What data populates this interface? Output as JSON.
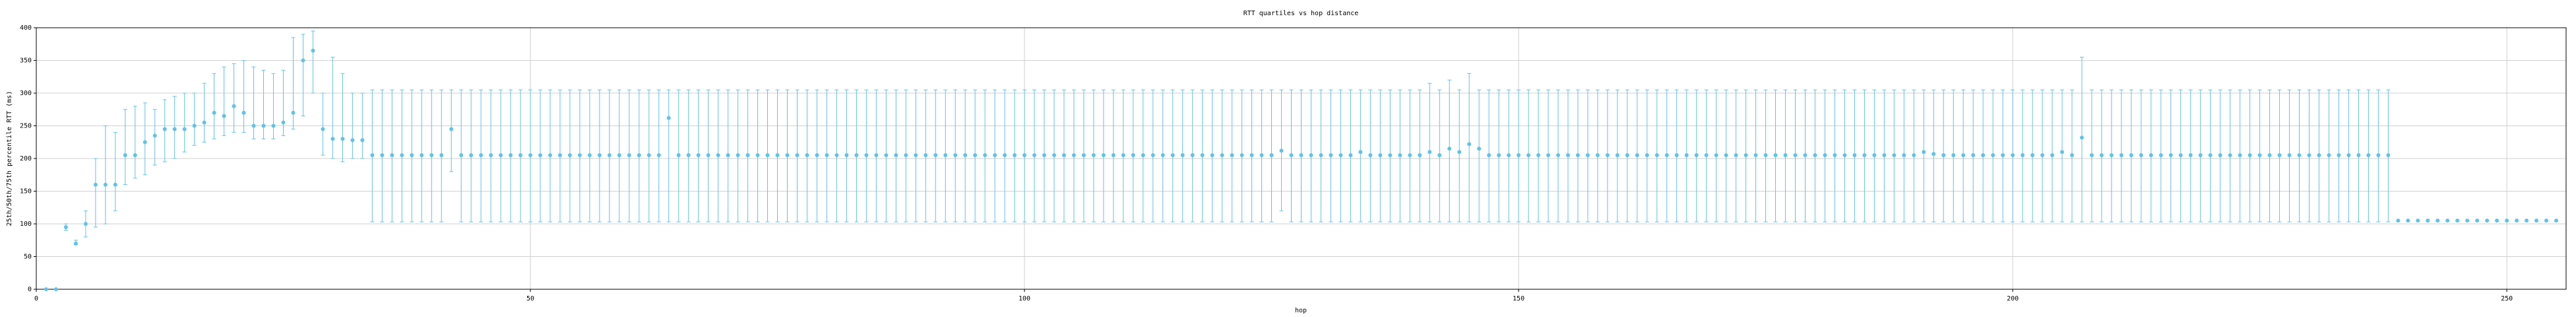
{
  "chart_data": {
    "type": "errorbar",
    "title": "RTT quartiles vs hop distance",
    "x_label": "hop",
    "y_label": "25th/50th/75th percentile RTT (ms)",
    "color": "#5fc3e8",
    "grid": true,
    "xlim": [
      0,
      256
    ],
    "xticks": [
      0,
      50,
      100,
      150,
      200,
      250
    ],
    "ylim": [
      0,
      400
    ],
    "yticks": [
      0,
      50,
      100,
      150,
      200,
      250,
      300,
      350,
      400
    ],
    "x": [
      1,
      2,
      3,
      4,
      5,
      6,
      7,
      8,
      9,
      10,
      11,
      12,
      13,
      14,
      15,
      16,
      17,
      18,
      19,
      20,
      21,
      22,
      23,
      24,
      25,
      26,
      27,
      28,
      29,
      30,
      31,
      32,
      33,
      34,
      35,
      36,
      37,
      38,
      39,
      40,
      41,
      42,
      43,
      44,
      45,
      46,
      47,
      48,
      49,
      50,
      51,
      52,
      53,
      54,
      55,
      56,
      57,
      58,
      59,
      60,
      61,
      62,
      63,
      64,
      65,
      66,
      67,
      68,
      69,
      70,
      71,
      72,
      73,
      74,
      75,
      76,
      77,
      78,
      79,
      80,
      81,
      82,
      83,
      84,
      85,
      86,
      87,
      88,
      89,
      90,
      91,
      92,
      93,
      94,
      95,
      96,
      97,
      98,
      99,
      100,
      101,
      102,
      103,
      104,
      105,
      106,
      107,
      108,
      109,
      110,
      111,
      112,
      113,
      114,
      115,
      116,
      117,
      118,
      119,
      120,
      121,
      122,
      123,
      124,
      125,
      126,
      127,
      128,
      129,
      130,
      131,
      132,
      133,
      134,
      135,
      136,
      137,
      138,
      139,
      140,
      141,
      142,
      143,
      144,
      145,
      146,
      147,
      148,
      149,
      150,
      151,
      152,
      153,
      154,
      155,
      156,
      157,
      158,
      159,
      160,
      161,
      162,
      163,
      164,
      165,
      166,
      167,
      168,
      169,
      170,
      171,
      172,
      173,
      174,
      175,
      176,
      177,
      178,
      179,
      180,
      181,
      182,
      183,
      184,
      185,
      186,
      187,
      188,
      189,
      190,
      191,
      192,
      193,
      194,
      195,
      196,
      197,
      198,
      199,
      200,
      201,
      202,
      203,
      204,
      205,
      206,
      207,
      208,
      209,
      210,
      211,
      212,
      213,
      214,
      215,
      216,
      217,
      218,
      219,
      220,
      221,
      222,
      223,
      224,
      225,
      226,
      227,
      228,
      229,
      230,
      231,
      232,
      233,
      234,
      235,
      236,
      237,
      238,
      239,
      240,
      241,
      242,
      243,
      244,
      245,
      246,
      247,
      248,
      249,
      250,
      251,
      252,
      253,
      254,
      255
    ],
    "values": [
      0,
      0,
      95,
      70,
      100,
      160,
      160,
      160,
      205,
      205,
      225,
      235,
      245,
      245,
      245,
      250,
      255,
      270,
      265,
      280,
      270,
      250,
      250,
      250,
      255,
      270,
      350,
      365,
      245,
      230,
      230,
      228,
      228,
      205,
      205,
      205,
      205,
      205,
      205,
      205,
      205,
      245,
      205,
      205,
      205,
      205,
      205,
      205,
      205,
      205,
      205,
      205,
      205,
      205,
      205,
      205,
      205,
      205,
      205,
      205,
      205,
      205,
      205,
      262,
      205,
      205,
      205,
      205,
      205,
      205,
      205,
      205,
      205,
      205,
      205,
      205,
      205,
      205,
      205,
      205,
      205,
      205,
      205,
      205,
      205,
      205,
      205,
      205,
      205,
      205,
      205,
      205,
      205,
      205,
      205,
      205,
      205,
      205,
      205,
      205,
      205,
      205,
      205,
      205,
      205,
      205,
      205,
      205,
      205,
      205,
      205,
      205,
      205,
      205,
      205,
      205,
      205,
      205,
      205,
      205,
      205,
      205,
      205,
      205,
      205,
      212,
      205,
      205,
      205,
      205,
      205,
      205,
      205,
      210,
      205,
      205,
      205,
      205,
      205,
      205,
      210,
      205,
      215,
      210,
      222,
      215,
      205,
      205,
      205,
      205,
      205,
      205,
      205,
      205,
      205,
      205,
      205,
      205,
      205,
      205,
      205,
      205,
      205,
      205,
      205,
      205,
      205,
      205,
      205,
      205,
      205,
      205,
      205,
      205,
      205,
      205,
      205,
      205,
      205,
      205,
      205,
      205,
      205,
      205,
      205,
      205,
      205,
      205,
      205,
      205,
      210,
      207,
      205,
      205,
      205,
      205,
      205,
      205,
      205,
      205,
      205,
      205,
      205,
      205,
      210,
      205,
      232,
      205,
      205,
      205,
      205,
      205,
      205,
      205,
      205,
      205,
      205,
      205,
      205,
      205,
      205,
      205,
      205,
      205,
      205,
      205,
      205,
      205,
      205,
      205,
      205,
      205,
      205,
      205,
      205,
      205,
      205,
      205,
      105,
      105,
      105,
      105,
      105,
      105,
      105,
      105,
      105,
      105,
      105,
      105,
      105,
      105,
      105,
      105,
      105
    ],
    "lower": [
      0,
      0,
      90,
      68,
      80,
      95,
      100,
      120,
      160,
      170,
      175,
      190,
      195,
      200,
      210,
      220,
      225,
      230,
      235,
      240,
      240,
      230,
      230,
      230,
      235,
      245,
      265,
      300,
      205,
      200,
      195,
      200,
      200,
      103,
      103,
      103,
      103,
      103,
      103,
      103,
      103,
      180,
      103,
      103,
      103,
      103,
      103,
      103,
      103,
      103,
      103,
      103,
      103,
      103,
      103,
      103,
      103,
      103,
      103,
      103,
      103,
      103,
      103,
      103,
      103,
      103,
      103,
      103,
      103,
      103,
      103,
      103,
      103,
      103,
      103,
      103,
      103,
      103,
      103,
      103,
      103,
      103,
      103,
      103,
      103,
      103,
      103,
      103,
      103,
      103,
      103,
      103,
      103,
      103,
      103,
      103,
      103,
      103,
      103,
      103,
      103,
      103,
      103,
      103,
      103,
      103,
      103,
      103,
      103,
      103,
      103,
      103,
      103,
      103,
      103,
      103,
      103,
      103,
      103,
      103,
      103,
      103,
      103,
      103,
      103,
      120,
      103,
      103,
      103,
      103,
      103,
      103,
      103,
      103,
      103,
      103,
      103,
      103,
      103,
      103,
      103,
      103,
      103,
      103,
      103,
      103,
      103,
      103,
      103,
      103,
      103,
      103,
      103,
      103,
      103,
      103,
      103,
      103,
      103,
      103,
      103,
      103,
      103,
      103,
      103,
      103,
      103,
      103,
      103,
      103,
      103,
      103,
      103,
      103,
      103,
      103,
      103,
      103,
      103,
      103,
      103,
      103,
      103,
      103,
      103,
      103,
      103,
      103,
      103,
      103,
      103,
      103,
      103,
      103,
      103,
      103,
      103,
      103,
      103,
      103,
      103,
      103,
      103,
      103,
      103,
      103,
      103,
      103,
      103,
      103,
      103,
      103,
      103,
      103,
      103,
      103,
      103,
      103,
      103,
      103,
      103,
      103,
      103,
      103,
      103,
      103,
      103,
      103,
      103,
      103,
      103,
      103,
      103,
      103,
      103,
      103,
      103,
      103,
      105,
      105,
      105,
      105,
      105,
      105,
      105,
      105,
      105,
      105,
      105,
      105,
      105,
      105,
      105,
      105,
      105
    ],
    "upper": [
      0,
      0,
      100,
      75,
      120,
      200,
      250,
      240,
      275,
      280,
      285,
      275,
      290,
      295,
      300,
      300,
      315,
      330,
      340,
      345,
      350,
      340,
      335,
      330,
      335,
      385,
      390,
      395,
      300,
      355,
      330,
      300,
      300,
      305,
      305,
      305,
      305,
      305,
      305,
      305,
      305,
      305,
      305,
      305,
      305,
      305,
      305,
      305,
      305,
      305,
      305,
      305,
      305,
      305,
      305,
      305,
      305,
      305,
      305,
      305,
      305,
      305,
      305,
      305,
      305,
      305,
      305,
      305,
      305,
      305,
      305,
      305,
      305,
      305,
      305,
      305,
      305,
      305,
      305,
      305,
      305,
      305,
      305,
      305,
      305,
      305,
      305,
      305,
      305,
      305,
      305,
      305,
      305,
      305,
      305,
      305,
      305,
      305,
      305,
      305,
      305,
      305,
      305,
      305,
      305,
      305,
      305,
      305,
      305,
      305,
      305,
      305,
      305,
      305,
      305,
      305,
      305,
      305,
      305,
      305,
      305,
      305,
      305,
      305,
      305,
      305,
      305,
      305,
      305,
      305,
      305,
      305,
      305,
      305,
      305,
      305,
      305,
      305,
      305,
      305,
      315,
      305,
      320,
      305,
      330,
      305,
      305,
      305,
      305,
      305,
      305,
      305,
      305,
      305,
      305,
      305,
      305,
      305,
      305,
      305,
      305,
      305,
      305,
      305,
      305,
      305,
      305,
      305,
      305,
      305,
      305,
      305,
      305,
      305,
      305,
      305,
      305,
      305,
      305,
      305,
      305,
      305,
      305,
      305,
      305,
      305,
      305,
      305,
      305,
      305,
      305,
      305,
      305,
      305,
      305,
      305,
      305,
      305,
      305,
      305,
      305,
      305,
      305,
      305,
      305,
      305,
      355,
      305,
      305,
      305,
      305,
      305,
      305,
      305,
      305,
      305,
      305,
      305,
      305,
      305,
      305,
      305,
      305,
      305,
      305,
      305,
      305,
      305,
      305,
      305,
      305,
      305,
      305,
      305,
      305,
      305,
      305,
      305,
      105,
      105,
      105,
      105,
      105,
      105,
      105,
      105,
      105,
      105,
      105,
      105,
      105,
      105,
      105,
      105,
      105
    ]
  }
}
